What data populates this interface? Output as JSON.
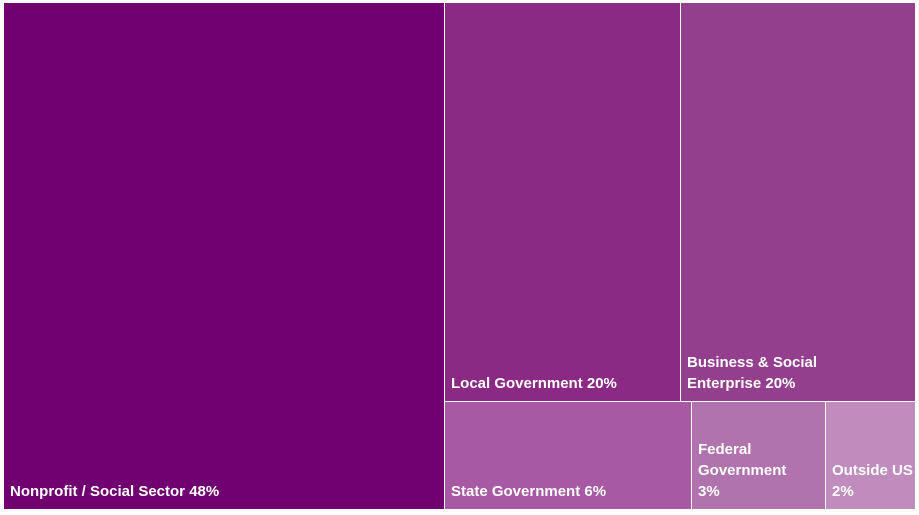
{
  "chart_data": {
    "type": "treemap",
    "title": "",
    "items": [
      {
        "label": "Nonprofit / Social Sector",
        "percent_text": "48%",
        "value": 48,
        "color": "#710070"
      },
      {
        "label": "Local Government",
        "percent_text": "20%",
        "value": 20,
        "color": "#8a2a85"
      },
      {
        "label": "Business & Social Enterprise",
        "percent_text": "20%",
        "value": 20,
        "color": "#933f8d"
      },
      {
        "label": "State Government",
        "percent_text": "6%",
        "value": 6,
        "color": "#a75aa3"
      },
      {
        "label": "Federal Government",
        "percent_text": "3%",
        "value": 3,
        "color": "#b173ae"
      },
      {
        "label": "Outside US",
        "percent_text": "2%",
        "value": 2,
        "color": "#c08bbd"
      }
    ]
  }
}
